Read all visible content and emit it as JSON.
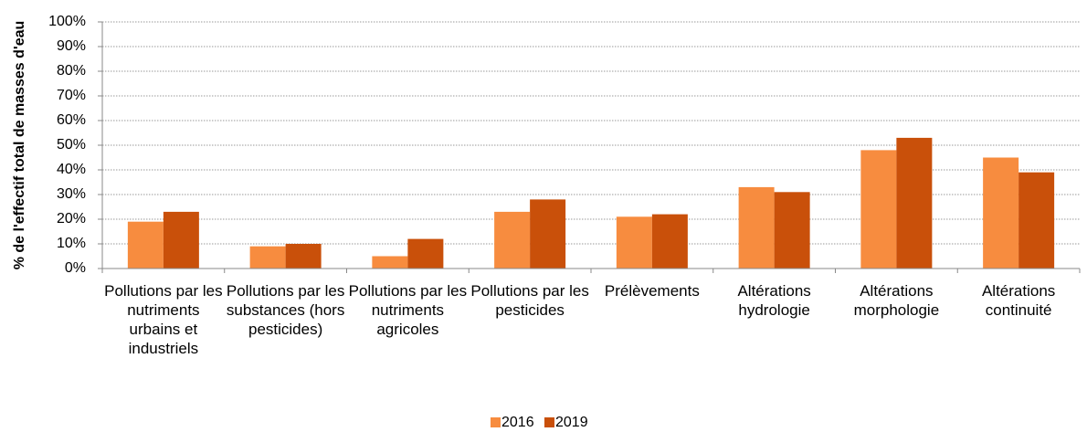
{
  "chart_data": {
    "type": "bar",
    "y_label": "% de l'effectif total de masses d'eau",
    "categories": [
      "Pollutions par les nutriments urbains et industriels",
      "Pollutions par les substances (hors pesticides)",
      "Pollutions par les nutriments agricoles",
      "Pollutions par les pesticides",
      "Prélèvements",
      "Altérations hydrologie",
      "Altérations morphologie",
      "Altérations continuité"
    ],
    "series": [
      {
        "name": "2016",
        "color": "#f78c3f",
        "values": [
          19,
          9,
          5,
          23,
          21,
          33,
          48,
          45
        ]
      },
      {
        "name": "2019",
        "color": "#c9500a",
        "values": [
          23,
          10,
          12,
          28,
          22,
          31,
          53,
          39
        ]
      }
    ],
    "ylim": [
      0,
      100
    ],
    "yticks": [
      {
        "value": 0,
        "label": "0%"
      },
      {
        "value": 10,
        "label": "10%"
      },
      {
        "value": 20,
        "label": "20%"
      },
      {
        "value": 30,
        "label": "30%"
      },
      {
        "value": 40,
        "label": "40%"
      },
      {
        "value": 50,
        "label": "50%"
      },
      {
        "value": 60,
        "label": "60%"
      },
      {
        "value": 70,
        "label": "70%"
      },
      {
        "value": 80,
        "label": "80%"
      },
      {
        "value": 90,
        "label": "90%"
      },
      {
        "value": 100,
        "label": "100%"
      }
    ],
    "grid": true,
    "legend": "bottom"
  }
}
